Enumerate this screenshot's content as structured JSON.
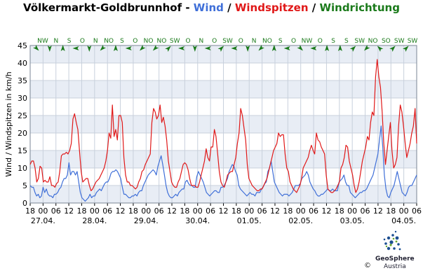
{
  "title": {
    "station": "Völkermarkt-Goldbrunnhof - ",
    "wind": "Wind",
    "sep1": " / ",
    "gusts": "Windspitzen",
    "sep2": " / ",
    "direction": "Windrichtung"
  },
  "colors": {
    "wind": "#3f6fd8",
    "gusts": "#e01818",
    "direction": "#1a7a1a",
    "band_light": "#e8edf5",
    "band_white": "#ffffff",
    "grid": "#c8d0dc"
  },
  "logo": {
    "name": "GeoSphere",
    "sub": "Austria",
    "copyright": "©"
  },
  "chart_data": {
    "type": "line",
    "ylabel": "Wind / Windspitzen in km/h",
    "ylim": [
      0,
      45
    ],
    "yticks": [
      0,
      5,
      10,
      15,
      20,
      25,
      30,
      35,
      40,
      45
    ],
    "x_hour_ticks": [
      "18",
      "00",
      "06",
      "12",
      "18",
      "00",
      "06",
      "12",
      "18",
      "00",
      "06",
      "12",
      "18",
      "00",
      "06",
      "12",
      "18",
      "00",
      "06",
      "12",
      "18",
      "00",
      "06",
      "12",
      "18",
      "00",
      "06",
      "12",
      "18",
      "00",
      "06"
    ],
    "x_date_labels": [
      "27.04.",
      "28.04.",
      "29.04.",
      "30.04.",
      "01.05.",
      "02.05.",
      "03.05.",
      "04.05."
    ],
    "direction_labels": [
      "NW",
      "N",
      "S",
      "O",
      "N",
      "NO",
      "S",
      "O",
      "NO",
      "NO",
      "SW",
      "O",
      "N",
      "O",
      "SW",
      "O",
      "N",
      "NO",
      "S",
      "O",
      "NW",
      "O",
      "S",
      "S",
      "SW",
      "NO",
      "SO",
      "SW",
      "SW"
    ],
    "series": [
      {
        "name": "Wind",
        "values": [
          5,
          4.5,
          4.5,
          3,
          2,
          2.5,
          1.5,
          2,
          4.5,
          3,
          4,
          2.5,
          2,
          2,
          1.5,
          2.5,
          2.5,
          3,
          4,
          4.5,
          6,
          7,
          7,
          8,
          11.5,
          8,
          9,
          9,
          8,
          9,
          6,
          3,
          1.5,
          1,
          0.5,
          1,
          1.5,
          2.5,
          1.5,
          2,
          2,
          3,
          3.5,
          4,
          3.5,
          4.5,
          5.5,
          6,
          6,
          7,
          8.5,
          9,
          9,
          9.5,
          9,
          8,
          7,
          4.5,
          2.5,
          2.5,
          2,
          1.5,
          1.5,
          2,
          2,
          2.5,
          2,
          3,
          3.5,
          3.5,
          5,
          6,
          7,
          8,
          8.5,
          9,
          9.5,
          9,
          8,
          10.5,
          12,
          13.5,
          11,
          8,
          5,
          3,
          2,
          1.5,
          1.5,
          2,
          2.5,
          2,
          3,
          3.5,
          4,
          4,
          6,
          6.5,
          5.5,
          5,
          5,
          4.5,
          4.5,
          7.5,
          9,
          8,
          7,
          6,
          4.5,
          3,
          2.5,
          2,
          2.5,
          3,
          3.5,
          3.5,
          3,
          3,
          4.5,
          4.5,
          5,
          6,
          7,
          9,
          10,
          11,
          10.5,
          9,
          8,
          5,
          4,
          3.5,
          3,
          2.5,
          2,
          2.5,
          3,
          2.5,
          2.5,
          2,
          3,
          3,
          3,
          4,
          4.5,
          5.5,
          6,
          9,
          10,
          12,
          9,
          6,
          5,
          4,
          3,
          2.5,
          2,
          2.5,
          2.5,
          2.5,
          2,
          2.5,
          3,
          4,
          5,
          5,
          5,
          5.5,
          7,
          7.5,
          8,
          9,
          8,
          6,
          5,
          4,
          3.5,
          2.5,
          2,
          2,
          2.5,
          2.5,
          3,
          3.5,
          4,
          3.5,
          3.5,
          4,
          3.5,
          3.5,
          3.5,
          6,
          6.5,
          7,
          8,
          6,
          5,
          5,
          3,
          2.5,
          2,
          1.5,
          2,
          2.5,
          3,
          3,
          3.5,
          3.5,
          4,
          5,
          6,
          7,
          8,
          10,
          12,
          14,
          18,
          22,
          16,
          8,
          4,
          2,
          1.5,
          3,
          4,
          5,
          7,
          9,
          7,
          5,
          3,
          2.5,
          2,
          3,
          4.5,
          5,
          5,
          6,
          7,
          8
        ]
      },
      {
        "name": "Windspitzen",
        "values": [
          11,
          12,
          12,
          10,
          6,
          7,
          10.5,
          10,
          6,
          6.5,
          6,
          6,
          7.5,
          5,
          5,
          4.5,
          5.5,
          6,
          9,
          13.5,
          14,
          14,
          14.5,
          14,
          15,
          17,
          24,
          25.5,
          23,
          21,
          15,
          9,
          6,
          6.5,
          7,
          7,
          5,
          3.5,
          4,
          5,
          6,
          6.5,
          7,
          8,
          9,
          10,
          12,
          15,
          20,
          18.5,
          28,
          19,
          21,
          18,
          25,
          25,
          23,
          13,
          8,
          6,
          6,
          5,
          5,
          4.5,
          4,
          4.5,
          6,
          7,
          9,
          9.5,
          11,
          12,
          13,
          14,
          23,
          27,
          26,
          24,
          25,
          28,
          23,
          24.5,
          22,
          18,
          12,
          9,
          6,
          5,
          4.5,
          4.5,
          6,
          7,
          9,
          11,
          11.5,
          11,
          9.5,
          7,
          5,
          5,
          5,
          4.5,
          4.5,
          6,
          8,
          10,
          12,
          15.5,
          13,
          12,
          16,
          16,
          21,
          19,
          14,
          9,
          6,
          5,
          4.5,
          6,
          8,
          8.5,
          9,
          9,
          11,
          13,
          17,
          20,
          27,
          25,
          21.5,
          18,
          11,
          7,
          6,
          5,
          4.5,
          4,
          3.5,
          3.5,
          4,
          4,
          5,
          6,
          7,
          9,
          11,
          13,
          15,
          16,
          17,
          20,
          19,
          19.5,
          19.5,
          14,
          10,
          9,
          6,
          5,
          4,
          3.5,
          3,
          4,
          5,
          7,
          10,
          11,
          12,
          13,
          15,
          16.5,
          15,
          14,
          20,
          18,
          17.5,
          16,
          15,
          14,
          8,
          4,
          3.5,
          3,
          3,
          3.5,
          4,
          5,
          6,
          10,
          11,
          13,
          16.5,
          16,
          12,
          10,
          8,
          5,
          3,
          4,
          6,
          9,
          12,
          14,
          16,
          19,
          18,
          23,
          26,
          25,
          36,
          41,
          36,
          33,
          26,
          17,
          11,
          15,
          19,
          23,
          15,
          10,
          11,
          13,
          22,
          28,
          26,
          22,
          17,
          13,
          15,
          17,
          20,
          22,
          27,
          17
        ]
      }
    ]
  }
}
